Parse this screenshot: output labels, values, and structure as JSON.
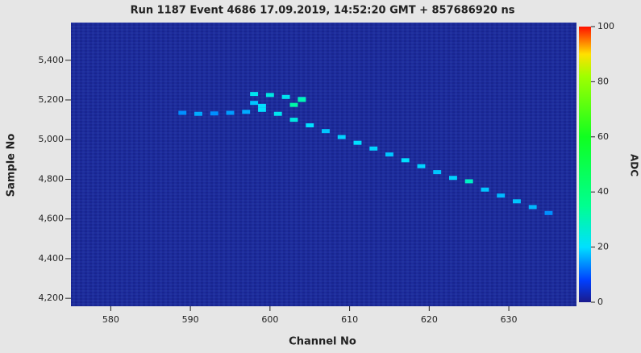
{
  "chart_data": {
    "type": "heatmap",
    "title": "Run 1187 Event 4686 17.09.2019, 14:52:20 GMT + 857686920 ns",
    "x_label": "Channel No",
    "y_label": "Sample No",
    "colorbar_label": "ADC",
    "xlim": [
      575,
      638.5
    ],
    "xticks": [
      580,
      590,
      600,
      610,
      620,
      630
    ],
    "ylim": [
      4160,
      5590
    ],
    "yticks": [
      {
        "value": 4200,
        "label": "4,200"
      },
      {
        "value": 4400,
        "label": "4,400"
      },
      {
        "value": 4600,
        "label": "4,600"
      },
      {
        "value": 4800,
        "label": "4,800"
      },
      {
        "value": 5000,
        "label": "5,000"
      },
      {
        "value": 5200,
        "label": "5,200"
      },
      {
        "value": 5400,
        "label": "5,400"
      }
    ],
    "clim": [
      0,
      100
    ],
    "cticks": [
      0,
      20,
      40,
      60,
      80,
      100
    ],
    "track": {
      "x": [
        589,
        591,
        593,
        595,
        597,
        599,
        598,
        598,
        600,
        602,
        604,
        603,
        604,
        599,
        601,
        603,
        605,
        607,
        609,
        611,
        613,
        615,
        617,
        619,
        621,
        623,
        625,
        627,
        629,
        631,
        633,
        635
      ],
      "y": [
        5135,
        5130,
        5132,
        5135,
        5140,
        5150,
        5185,
        5230,
        5225,
        5215,
        5205,
        5175,
        5200,
        5170,
        5130,
        5100,
        5072,
        5043,
        5013,
        4984,
        4955,
        4925,
        4896,
        4866,
        4836,
        4807,
        4790,
        4748,
        4718,
        4689,
        4660,
        4630
      ],
      "values": [
        14,
        16,
        14,
        15,
        16,
        20,
        18,
        22,
        24,
        22,
        26,
        32,
        30,
        20,
        22,
        24,
        20,
        18,
        19,
        20,
        19,
        18,
        20,
        19,
        18,
        19,
        28,
        18,
        17,
        18,
        17,
        14
      ]
    }
  }
}
